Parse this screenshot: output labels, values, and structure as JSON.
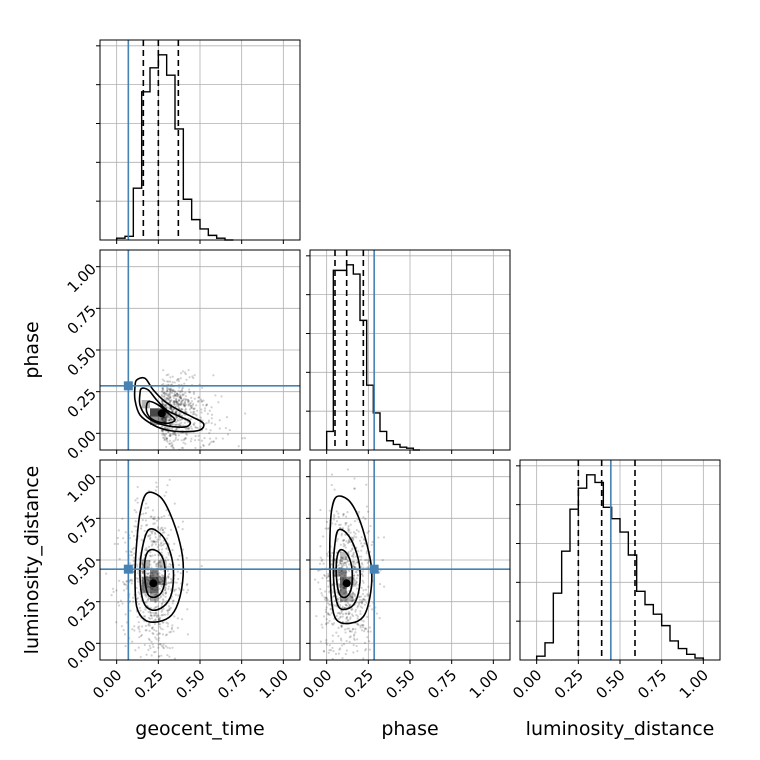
{
  "chart_data": {
    "type": "corner",
    "parameters": [
      "geocent_time",
      "phase",
      "luminosity_distance"
    ],
    "axis_range": [
      -0.1,
      1.1
    ],
    "ticks": [
      0.0,
      0.25,
      0.5,
      0.75,
      1.0
    ],
    "tick_labels": [
      "0.00",
      "0.25",
      "0.50",
      "0.75",
      "1.00"
    ],
    "grid": true,
    "colors": {
      "truth": "#4682b4",
      "hist": "#000000",
      "density": "#000000"
    },
    "truths": {
      "geocent_time": 0.07,
      "phase": 0.285,
      "luminosity_distance": 0.445
    },
    "quantiles": {
      "geocent_time": [
        0.16,
        0.25,
        0.37
      ],
      "phase": [
        0.05,
        0.12,
        0.22
      ],
      "luminosity_distance": [
        0.25,
        0.39,
        0.59
      ]
    },
    "histograms": {
      "geocent_time": {
        "bin_edges": [
          0.0,
          0.05,
          0.1,
          0.15,
          0.2,
          0.25,
          0.3,
          0.35,
          0.4,
          0.45,
          0.5,
          0.55,
          0.6,
          0.65,
          0.7
        ],
        "counts": [
          0.01,
          0.02,
          0.28,
          0.8,
          0.93,
          1.0,
          0.89,
          0.6,
          0.22,
          0.11,
          0.06,
          0.025,
          0.01,
          0.0
        ]
      },
      "phase": {
        "bin_edges": [
          0.0,
          0.04,
          0.08,
          0.12,
          0.16,
          0.2,
          0.24,
          0.28,
          0.32,
          0.36,
          0.4,
          0.44,
          0.48,
          0.52,
          0.56
        ],
        "counts": [
          0.1,
          0.97,
          0.97,
          1.0,
          0.95,
          0.7,
          0.35,
          0.2,
          0.1,
          0.05,
          0.03,
          0.015,
          0.01,
          0.0
        ]
      },
      "luminosity_distance": {
        "bin_edges": [
          0.0,
          0.05,
          0.1,
          0.15,
          0.2,
          0.25,
          0.3,
          0.35,
          0.4,
          0.45,
          0.5,
          0.55,
          0.6,
          0.65,
          0.7,
          0.75,
          0.8,
          0.85,
          0.9,
          0.95,
          1.0
        ],
        "counts": [
          0.02,
          0.09,
          0.35,
          0.57,
          0.79,
          0.9,
          0.97,
          0.93,
          0.8,
          0.74,
          0.67,
          0.55,
          0.36,
          0.29,
          0.24,
          0.18,
          0.1,
          0.06,
          0.03,
          0.01
        ]
      }
    },
    "panels_2d": [
      {
        "x": "geocent_time",
        "y": "phase",
        "center": [
          0.27,
          0.12
        ],
        "density_cells": [
          {
            "x": [
              0.2,
              0.25
            ],
            "y": [
              0.1,
              0.15
            ],
            "shade": 0.85
          },
          {
            "x": [
              0.25,
              0.3
            ],
            "y": [
              0.1,
              0.15
            ],
            "shade": 0.75
          },
          {
            "x": [
              0.2,
              0.25
            ],
            "y": [
              0.05,
              0.1
            ],
            "shade": 0.5
          },
          {
            "x": [
              0.25,
              0.3
            ],
            "y": [
              0.05,
              0.1
            ],
            "shade": 0.55
          },
          {
            "x": [
              0.15,
              0.2
            ],
            "y": [
              0.15,
              0.2
            ],
            "shade": 0.35
          }
        ],
        "contours": [
          [
            [
              0.12,
              0.32
            ],
            [
              0.17,
              0.33
            ],
            [
              0.22,
              0.26
            ],
            [
              0.29,
              0.19
            ],
            [
              0.37,
              0.14
            ],
            [
              0.45,
              0.1
            ],
            [
              0.52,
              0.06
            ],
            [
              0.5,
              0.02
            ],
            [
              0.4,
              0.01
            ],
            [
              0.3,
              0.02
            ],
            [
              0.22,
              0.05
            ],
            [
              0.14,
              0.11
            ],
            [
              0.11,
              0.2
            ],
            [
              0.11,
              0.28
            ]
          ],
          [
            [
              0.15,
              0.27
            ],
            [
              0.19,
              0.26
            ],
            [
              0.24,
              0.2
            ],
            [
              0.3,
              0.14
            ],
            [
              0.38,
              0.1
            ],
            [
              0.44,
              0.07
            ],
            [
              0.42,
              0.04
            ],
            [
              0.34,
              0.04
            ],
            [
              0.25,
              0.06
            ],
            [
              0.18,
              0.1
            ],
            [
              0.14,
              0.17
            ],
            [
              0.14,
              0.24
            ]
          ],
          [
            [
              0.19,
              0.19
            ],
            [
              0.25,
              0.17
            ],
            [
              0.31,
              0.12
            ],
            [
              0.35,
              0.08
            ],
            [
              0.3,
              0.06
            ],
            [
              0.22,
              0.08
            ],
            [
              0.18,
              0.13
            ]
          ]
        ]
      },
      {
        "x": "geocent_time",
        "y": "luminosity_distance",
        "center": [
          0.22,
          0.36
        ],
        "density_cells": [
          {
            "x": [
              0.15,
              0.2
            ],
            "y": [
              0.3,
              0.35
            ],
            "shade": 0.55
          },
          {
            "x": [
              0.2,
              0.25
            ],
            "y": [
              0.3,
              0.35
            ],
            "shade": 0.7
          },
          {
            "x": [
              0.15,
              0.2
            ],
            "y": [
              0.35,
              0.4
            ],
            "shade": 0.6
          },
          {
            "x": [
              0.2,
              0.25
            ],
            "y": [
              0.35,
              0.4
            ],
            "shade": 0.8
          },
          {
            "x": [
              0.25,
              0.3
            ],
            "y": [
              0.35,
              0.4
            ],
            "shade": 0.5
          },
          {
            "x": [
              0.2,
              0.25
            ],
            "y": [
              0.4,
              0.45
            ],
            "shade": 0.55
          },
          {
            "x": [
              0.15,
              0.2
            ],
            "y": [
              0.45,
              0.5
            ],
            "shade": 0.35
          },
          {
            "x": [
              0.25,
              0.3
            ],
            "y": [
              0.45,
              0.5
            ],
            "shade": 0.3
          },
          {
            "x": [
              0.2,
              0.25
            ],
            "y": [
              0.25,
              0.3
            ],
            "shade": 0.4
          }
        ],
        "contours": [
          [
            [
              0.18,
              0.9
            ],
            [
              0.26,
              0.88
            ],
            [
              0.32,
              0.78
            ],
            [
              0.38,
              0.6
            ],
            [
              0.4,
              0.45
            ],
            [
              0.38,
              0.28
            ],
            [
              0.33,
              0.17
            ],
            [
              0.25,
              0.13
            ],
            [
              0.17,
              0.14
            ],
            [
              0.12,
              0.22
            ],
            [
              0.11,
              0.4
            ],
            [
              0.12,
              0.6
            ],
            [
              0.14,
              0.78
            ]
          ],
          [
            [
              0.19,
              0.68
            ],
            [
              0.26,
              0.66
            ],
            [
              0.31,
              0.58
            ],
            [
              0.34,
              0.45
            ],
            [
              0.33,
              0.3
            ],
            [
              0.28,
              0.22
            ],
            [
              0.21,
              0.2
            ],
            [
              0.16,
              0.25
            ],
            [
              0.14,
              0.4
            ],
            [
              0.15,
              0.55
            ]
          ],
          [
            [
              0.2,
              0.56
            ],
            [
              0.26,
              0.54
            ],
            [
              0.29,
              0.45
            ],
            [
              0.28,
              0.33
            ],
            [
              0.24,
              0.28
            ],
            [
              0.19,
              0.29
            ],
            [
              0.17,
              0.38
            ],
            [
              0.17,
              0.5
            ]
          ]
        ]
      },
      {
        "x": "phase",
        "y": "luminosity_distance",
        "center": [
          0.12,
          0.36
        ],
        "density_cells": [
          {
            "x": [
              0.08,
              0.12
            ],
            "y": [
              0.3,
              0.35
            ],
            "shade": 0.6
          },
          {
            "x": [
              0.08,
              0.12
            ],
            "y": [
              0.35,
              0.4
            ],
            "shade": 0.7
          },
          {
            "x": [
              0.12,
              0.16
            ],
            "y": [
              0.35,
              0.4
            ],
            "shade": 0.5
          },
          {
            "x": [
              0.08,
              0.12
            ],
            "y": [
              0.4,
              0.45
            ],
            "shade": 0.55
          },
          {
            "x": [
              0.04,
              0.08
            ],
            "y": [
              0.4,
              0.45
            ],
            "shade": 0.45
          },
          {
            "x": [
              0.12,
              0.16
            ],
            "y": [
              0.25,
              0.3
            ],
            "shade": 0.35
          },
          {
            "x": [
              0.08,
              0.12
            ],
            "y": [
              0.25,
              0.3
            ],
            "shade": 0.45
          },
          {
            "x": [
              0.08,
              0.12
            ],
            "y": [
              0.5,
              0.55
            ],
            "shade": 0.3
          }
        ],
        "contours": [
          [
            [
              0.06,
              0.88
            ],
            [
              0.13,
              0.86
            ],
            [
              0.19,
              0.76
            ],
            [
              0.24,
              0.6
            ],
            [
              0.27,
              0.44
            ],
            [
              0.26,
              0.28
            ],
            [
              0.22,
              0.16
            ],
            [
              0.14,
              0.12
            ],
            [
              0.06,
              0.14
            ],
            [
              0.03,
              0.25
            ],
            [
              0.02,
              0.45
            ],
            [
              0.02,
              0.65
            ],
            [
              0.03,
              0.8
            ]
          ],
          [
            [
              0.07,
              0.68
            ],
            [
              0.12,
              0.66
            ],
            [
              0.17,
              0.57
            ],
            [
              0.2,
              0.44
            ],
            [
              0.19,
              0.3
            ],
            [
              0.15,
              0.22
            ],
            [
              0.08,
              0.21
            ],
            [
              0.05,
              0.3
            ],
            [
              0.04,
              0.45
            ],
            [
              0.05,
              0.6
            ]
          ],
          [
            [
              0.08,
              0.56
            ],
            [
              0.12,
              0.54
            ],
            [
              0.15,
              0.46
            ],
            [
              0.15,
              0.34
            ],
            [
              0.12,
              0.28
            ],
            [
              0.08,
              0.29
            ],
            [
              0.06,
              0.38
            ],
            [
              0.06,
              0.5
            ]
          ]
        ]
      }
    ]
  }
}
